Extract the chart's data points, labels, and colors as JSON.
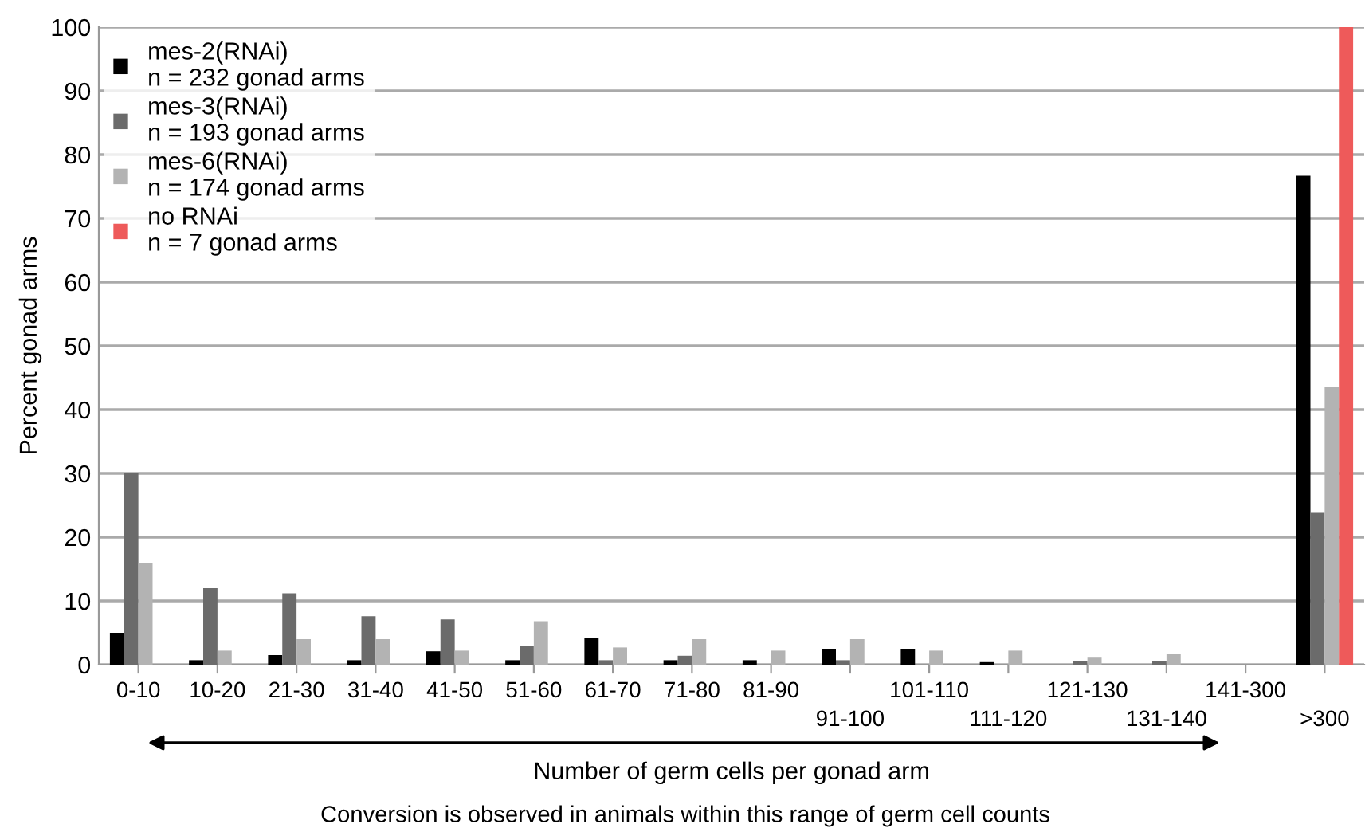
{
  "chart_data": {
    "type": "bar",
    "xlabel": "Number of germ cells per gonad arm",
    "ylabel": "Percent gonad arms",
    "categories": [
      "0-10",
      "10-20",
      "21-30",
      "31-40",
      "41-50",
      "51-60",
      "61-70",
      "71-80",
      "81-90",
      "91-100",
      "101-110",
      "111-120",
      "121-130",
      "131-140",
      "141-300",
      ">300"
    ],
    "series": [
      {
        "name": "mes-2(RNAi)\nn = 232 gonad arms",
        "color": "#000000",
        "values": [
          5,
          0.7,
          1.5,
          0.7,
          2.1,
          0.7,
          4.2,
          0.7,
          0.7,
          2.5,
          2.5,
          0.4,
          0,
          0,
          0,
          76.7
        ]
      },
      {
        "name": "mes-3(RNAi)\nn = 193 gonad arms",
        "color": "#6b6b6b",
        "values": [
          30,
          12,
          11.2,
          7.6,
          7.1,
          3,
          0.7,
          1.4,
          0,
          0.7,
          0,
          0,
          0.5,
          0.5,
          0,
          23.8
        ]
      },
      {
        "name": "mes-6(RNAi)\nn = 174 gonad arms",
        "color": "#b3b3b3",
        "values": [
          16,
          2.2,
          4,
          4,
          2.2,
          6.8,
          2.7,
          4,
          2.2,
          4,
          2.2,
          2.2,
          1.1,
          1.7,
          0,
          43.5
        ]
      },
      {
        "name": "no RNAi\nn = 7 gonad arms",
        "color": "#ee5a5a",
        "values": [
          0,
          0,
          0,
          0,
          0,
          0,
          0,
          0,
          0,
          0,
          0,
          0,
          0,
          0,
          0,
          100
        ]
      }
    ],
    "ylim": [
      0,
      100
    ],
    "yticks": [
      0,
      10,
      20,
      30,
      40,
      50,
      60,
      70,
      80,
      90,
      100
    ],
    "grid": "y",
    "legend": "top left",
    "annotations": [
      "Conversion is observed in animals within this range of germ cell counts"
    ]
  }
}
